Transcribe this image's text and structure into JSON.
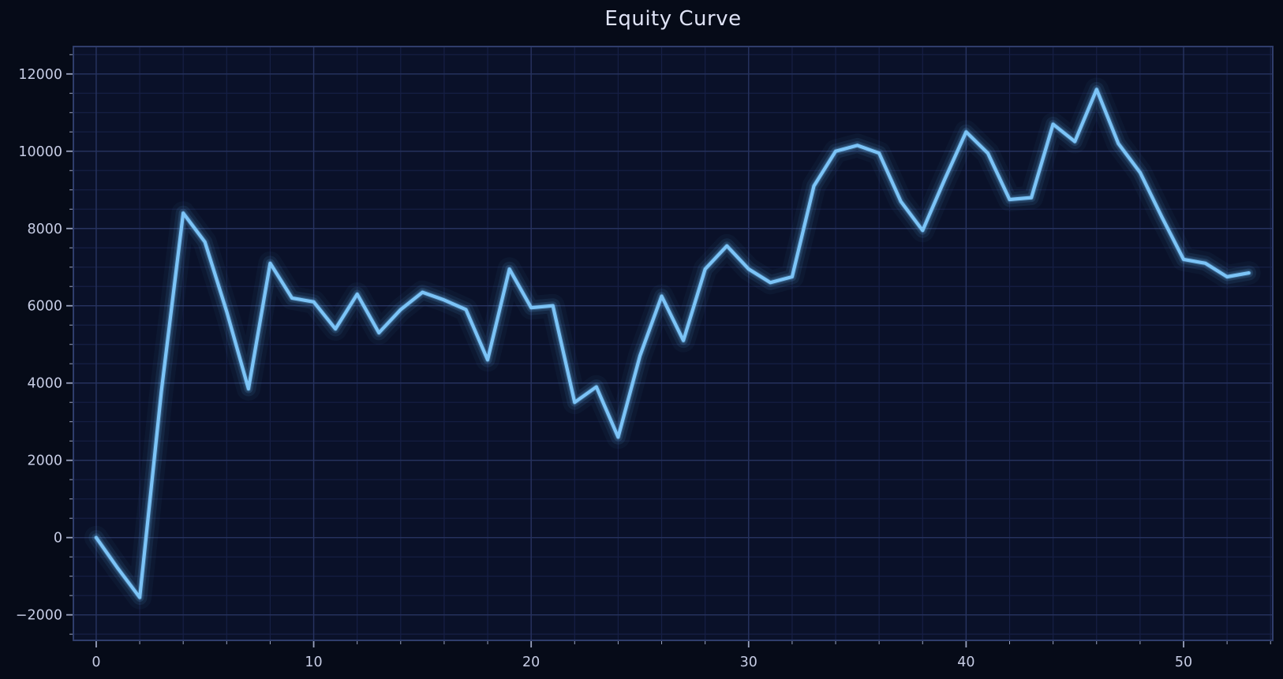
{
  "title": "Equity Curve",
  "chart_data": {
    "type": "line",
    "series_name": "equity",
    "x": [
      0,
      1,
      2,
      3,
      4,
      5,
      6,
      7,
      8,
      9,
      10,
      11,
      12,
      13,
      14,
      15,
      16,
      17,
      18,
      19,
      20,
      21,
      22,
      23,
      24,
      25,
      26,
      27,
      28,
      29,
      30,
      31,
      32,
      33,
      34,
      35,
      36,
      37,
      38,
      39,
      40,
      41,
      42,
      43,
      44,
      45,
      46,
      47,
      48,
      49,
      50,
      51,
      52,
      53
    ],
    "values": [
      0,
      -800,
      -1550,
      3800,
      8400,
      7650,
      5850,
      3850,
      7100,
      6200,
      6100,
      5400,
      6300,
      5300,
      5900,
      6350,
      6150,
      5900,
      4600,
      6950,
      5950,
      6000,
      3500,
      3900,
      2600,
      4700,
      6250,
      5100,
      6950,
      7550,
      6950,
      6600,
      6750,
      9100,
      10000,
      10150,
      9950,
      8700,
      7950,
      9250,
      10500,
      9950,
      8750,
      8800,
      10700,
      10250,
      11600,
      10200,
      9450,
      8300,
      7200,
      7100,
      6750,
      6850
    ],
    "title": "Equity Curve",
    "xlabel": "",
    "ylabel": "",
    "x_ticks": [
      0,
      10,
      20,
      30,
      40,
      50
    ],
    "y_ticks": [
      -2000,
      0,
      2000,
      4000,
      6000,
      8000,
      10000,
      12000
    ],
    "x_minor_step": 2,
    "y_minor_step": 500,
    "xlim": [
      -1.05,
      54.1
    ],
    "ylim": [
      -2660,
      12710
    ],
    "grid": "major-and-minor",
    "legend": "none"
  },
  "colors": {
    "outer_background": "#060b18",
    "plot_background": "#0a1129",
    "line": "#68b8f2",
    "line_core": "#7cc4f7",
    "grid_minor": "#161f45",
    "grid_major": "#27335f",
    "spine": "#2f3d6b",
    "tick": "#9aa3c0",
    "tick_label": "#c6cce4",
    "title": "#dfe3f6"
  }
}
